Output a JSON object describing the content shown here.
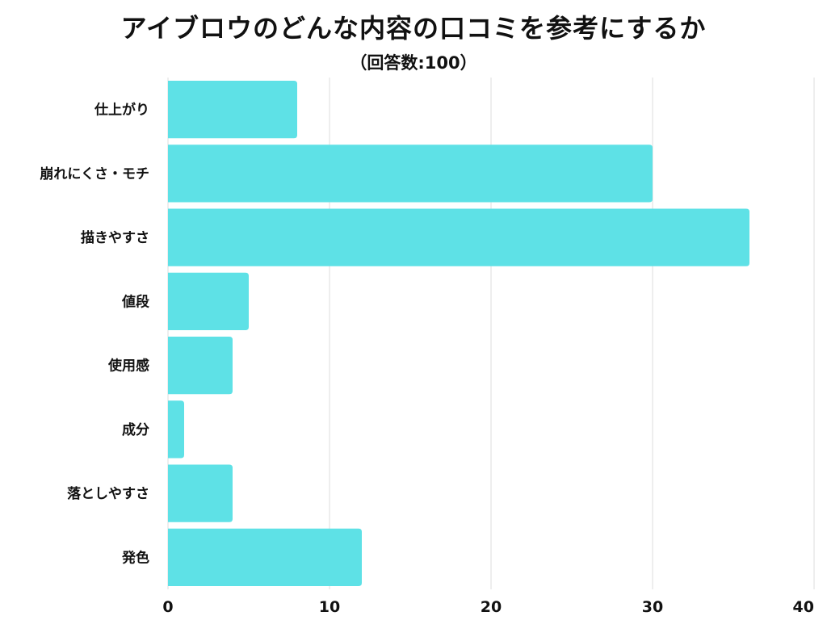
{
  "chart_data": {
    "type": "bar",
    "orientation": "horizontal",
    "title": "アイブロウのどんな内容の口コミを参考にするか",
    "subtitle": "（回答数:100）",
    "categories": [
      "仕上がり",
      "崩れにくさ・モチ",
      "描きやすさ",
      "値段",
      "使用感",
      "成分",
      "落としやすさ",
      "発色"
    ],
    "values": [
      8,
      30,
      36,
      5,
      4,
      1,
      4,
      12
    ],
    "xlim": [
      0,
      40
    ],
    "xticks": [
      0,
      10,
      20,
      30,
      40
    ],
    "xlabel": "",
    "ylabel": "",
    "grid": true,
    "legend": false,
    "bar_color": "#5EE1E6",
    "grid_color": "#dddddd"
  }
}
